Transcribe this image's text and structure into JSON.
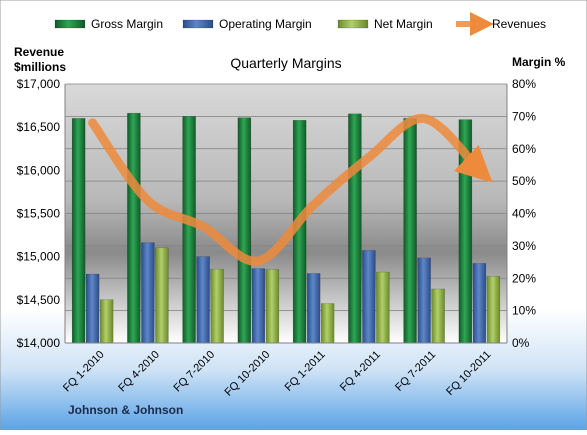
{
  "chart_data": {
    "type": "bar",
    "title": "Quarterly Margins",
    "company_label": "Johnson & Johnson",
    "left_axis_label_line1": "Revenue",
    "left_axis_label_line2": "$millions",
    "right_axis_label": "Margin %",
    "categories": [
      "FQ 1-2010",
      "FQ 4-2010",
      "FQ 7-2010",
      "FQ 10-2010",
      "FQ 1-2011",
      "FQ 4-2011",
      "FQ 7-2011",
      "FQ 10-2011"
    ],
    "left_ylim": [
      14000,
      17000
    ],
    "left_ticks": [
      "$14,000",
      "$14,500",
      "$15,000",
      "$15,500",
      "$16,000",
      "$16,500",
      "$17,000"
    ],
    "left_tick_values": [
      14000,
      14500,
      15000,
      15500,
      16000,
      16500,
      17000
    ],
    "right_ylim": [
      0,
      80
    ],
    "right_ticks": [
      "0%",
      "10%",
      "20%",
      "30%",
      "40%",
      "50%",
      "60%",
      "70%",
      "80%"
    ],
    "right_tick_values": [
      0,
      10,
      20,
      30,
      40,
      50,
      60,
      70,
      80
    ],
    "series": [
      {
        "name": "Gross Margin",
        "axis": "right",
        "kind": "bar",
        "color": "#1f7a3c",
        "values": [
          69.4,
          71.0,
          70.0,
          69.6,
          68.8,
          70.8,
          69.4,
          69.0
        ]
      },
      {
        "name": "Operating Margin",
        "axis": "right",
        "kind": "bar",
        "color": "#3c64a8",
        "values": [
          21.3,
          31.0,
          26.7,
          23.0,
          21.5,
          28.6,
          26.3,
          24.6
        ]
      },
      {
        "name": "Net Margin",
        "axis": "right",
        "kind": "bar",
        "color": "#8fb04a",
        "values": [
          13.4,
          29.4,
          22.8,
          22.7,
          12.2,
          21.9,
          16.7,
          20.6
        ]
      },
      {
        "name": "Revenues",
        "axis": "left",
        "kind": "line",
        "color": "#ee8a3c",
        "values": [
          16550,
          15650,
          15350,
          14950,
          15600,
          16150,
          16600,
          16000
        ]
      }
    ],
    "grid": true,
    "legend": "top"
  }
}
